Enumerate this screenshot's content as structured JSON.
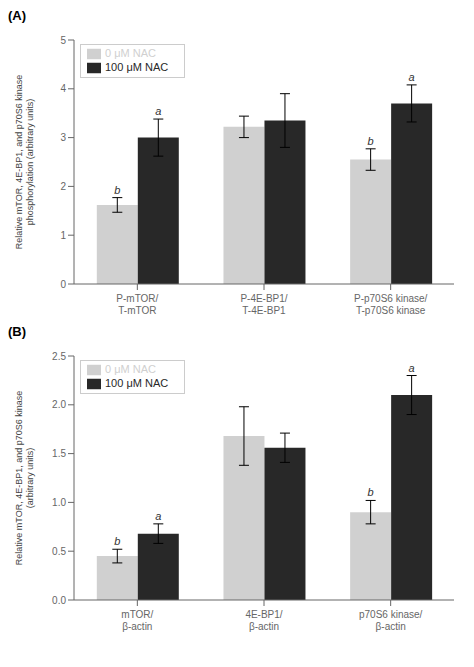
{
  "chart_data": [
    {
      "type": "bar",
      "title": "(A)",
      "categories": [
        "P-mTOR/T-mTOR",
        "P-4E-BP1/T-4E-BP1",
        "P-p70S6 kinase/T-p70S6 kinase"
      ],
      "series": [
        {
          "name": "0 μM NAC",
          "color": "#d0d0d0",
          "values": [
            1.62,
            3.22,
            2.55
          ],
          "errors": [
            0.15,
            0.22,
            0.22
          ],
          "annotations": [
            "b",
            null,
            "b"
          ]
        },
        {
          "name": "100 μM NAC",
          "color": "#282828",
          "values": [
            3.0,
            3.35,
            3.7
          ],
          "errors": [
            0.38,
            0.55,
            0.38
          ],
          "annotations": [
            "a",
            null,
            "a"
          ]
        }
      ],
      "y_label": "Relative mTOR, 4E-BP1, and p70S6 kinase\nphosphorylation (arbitrary units)",
      "ylim": [
        0,
        5
      ],
      "yticks": [
        0,
        1,
        2,
        3,
        4,
        5
      ],
      "grid": false,
      "legend": "upper left"
    },
    {
      "type": "bar",
      "title": "(B)",
      "categories": [
        "mTOR/β-actin",
        "4E-BP1/β-actin",
        "p70S6 kinase/β-actin"
      ],
      "series": [
        {
          "name": "0 μM NAC",
          "color": "#d0d0d0",
          "values": [
            0.45,
            1.68,
            0.9
          ],
          "errors": [
            0.07,
            0.3,
            0.12
          ],
          "annotations": [
            "b",
            null,
            "b"
          ]
        },
        {
          "name": "100 μM NAC",
          "color": "#282828",
          "values": [
            0.68,
            1.56,
            2.1
          ],
          "errors": [
            0.1,
            0.15,
            0.2
          ],
          "annotations": [
            "a",
            null,
            "a"
          ]
        }
      ],
      "y_label": "Relative mTOR, 4E-BP1, and p70S6 kinase\n(arbitrary units)",
      "ylim": [
        0,
        2.5
      ],
      "yticks": [
        {
          "value": 0,
          "label": "0.0"
        },
        0.5,
        {
          "value": 1,
          "label": "1.0"
        },
        1.5,
        {
          "value": 2,
          "label": "2.0"
        },
        2.5
      ],
      "grid": false,
      "legend": "upper left"
    }
  ]
}
